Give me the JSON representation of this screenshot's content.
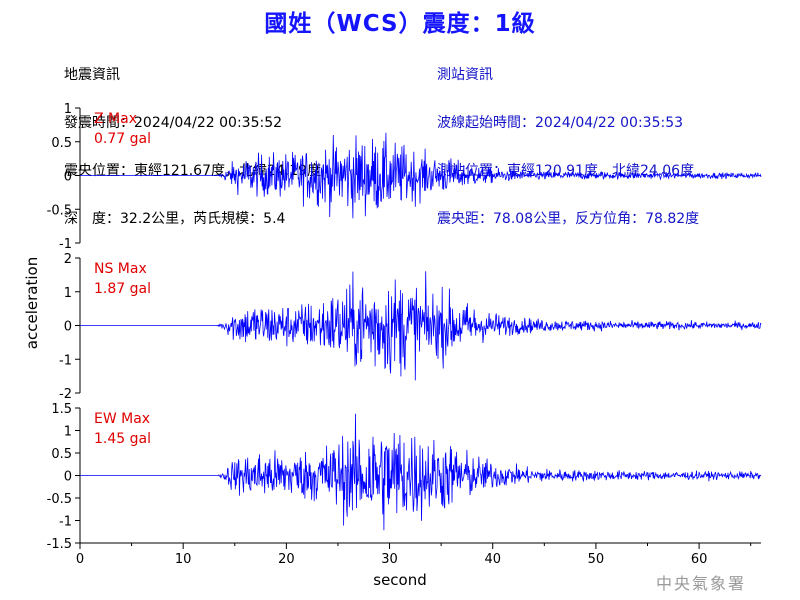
{
  "title": "國姓（WCS）震度：1級",
  "earthquake_info": {
    "heading": "地震資訊",
    "lines": [
      "發震時間：2024/04/22 00:35:52",
      "震央位置：東經121.67度，北緯24.19度",
      "深　度：32.2公里，芮氏規模：5.4"
    ]
  },
  "station_info": {
    "heading": "測站資訊",
    "lines": [
      "波線起始時間：2024/04/22 00:35:53",
      "測站位置：東經120.91度，北緯24.06度",
      "震央距：78.08公里，反方位角：78.82度"
    ]
  },
  "footer": "中央氣象署",
  "colors": {
    "trace": "#0000ff",
    "title": "#1414ff",
    "station_text": "#1414c8",
    "max_label": "#e00000"
  },
  "chart_data": {
    "type": "line",
    "xlabel": "second",
    "ylabel": "acceleration",
    "xlim": [
      0,
      66
    ],
    "xticks": [
      "0",
      "10",
      "20",
      "30",
      "40",
      "50",
      "60"
    ],
    "panels": [
      {
        "name": "Z Max",
        "max_value": "0.77 gal",
        "ylim": [
          -1,
          1
        ],
        "yticks": [
          "1",
          "0.5",
          "0",
          "-0.5",
          "-1"
        ],
        "onset_s": 13.3,
        "peak_s": 27.5,
        "peak_amp": 0.68
      },
      {
        "name": "NS Max",
        "max_value": "1.87 gal",
        "ylim": [
          -2,
          2
        ],
        "yticks": [
          "2",
          "1",
          "0",
          "-1",
          "-2"
        ],
        "onset_s": 13.3,
        "peak_s": 29.5,
        "peak_amp": 1.75
      },
      {
        "name": "EW Max",
        "max_value": "1.45 gal",
        "ylim": [
          -1.5,
          1.5
        ],
        "yticks": [
          "1.5",
          "1",
          "0.5",
          "0",
          "-0.5",
          "-1",
          "-1.5"
        ],
        "onset_s": 13.3,
        "peak_s": 29.5,
        "peak_amp": 1.4
      }
    ]
  }
}
